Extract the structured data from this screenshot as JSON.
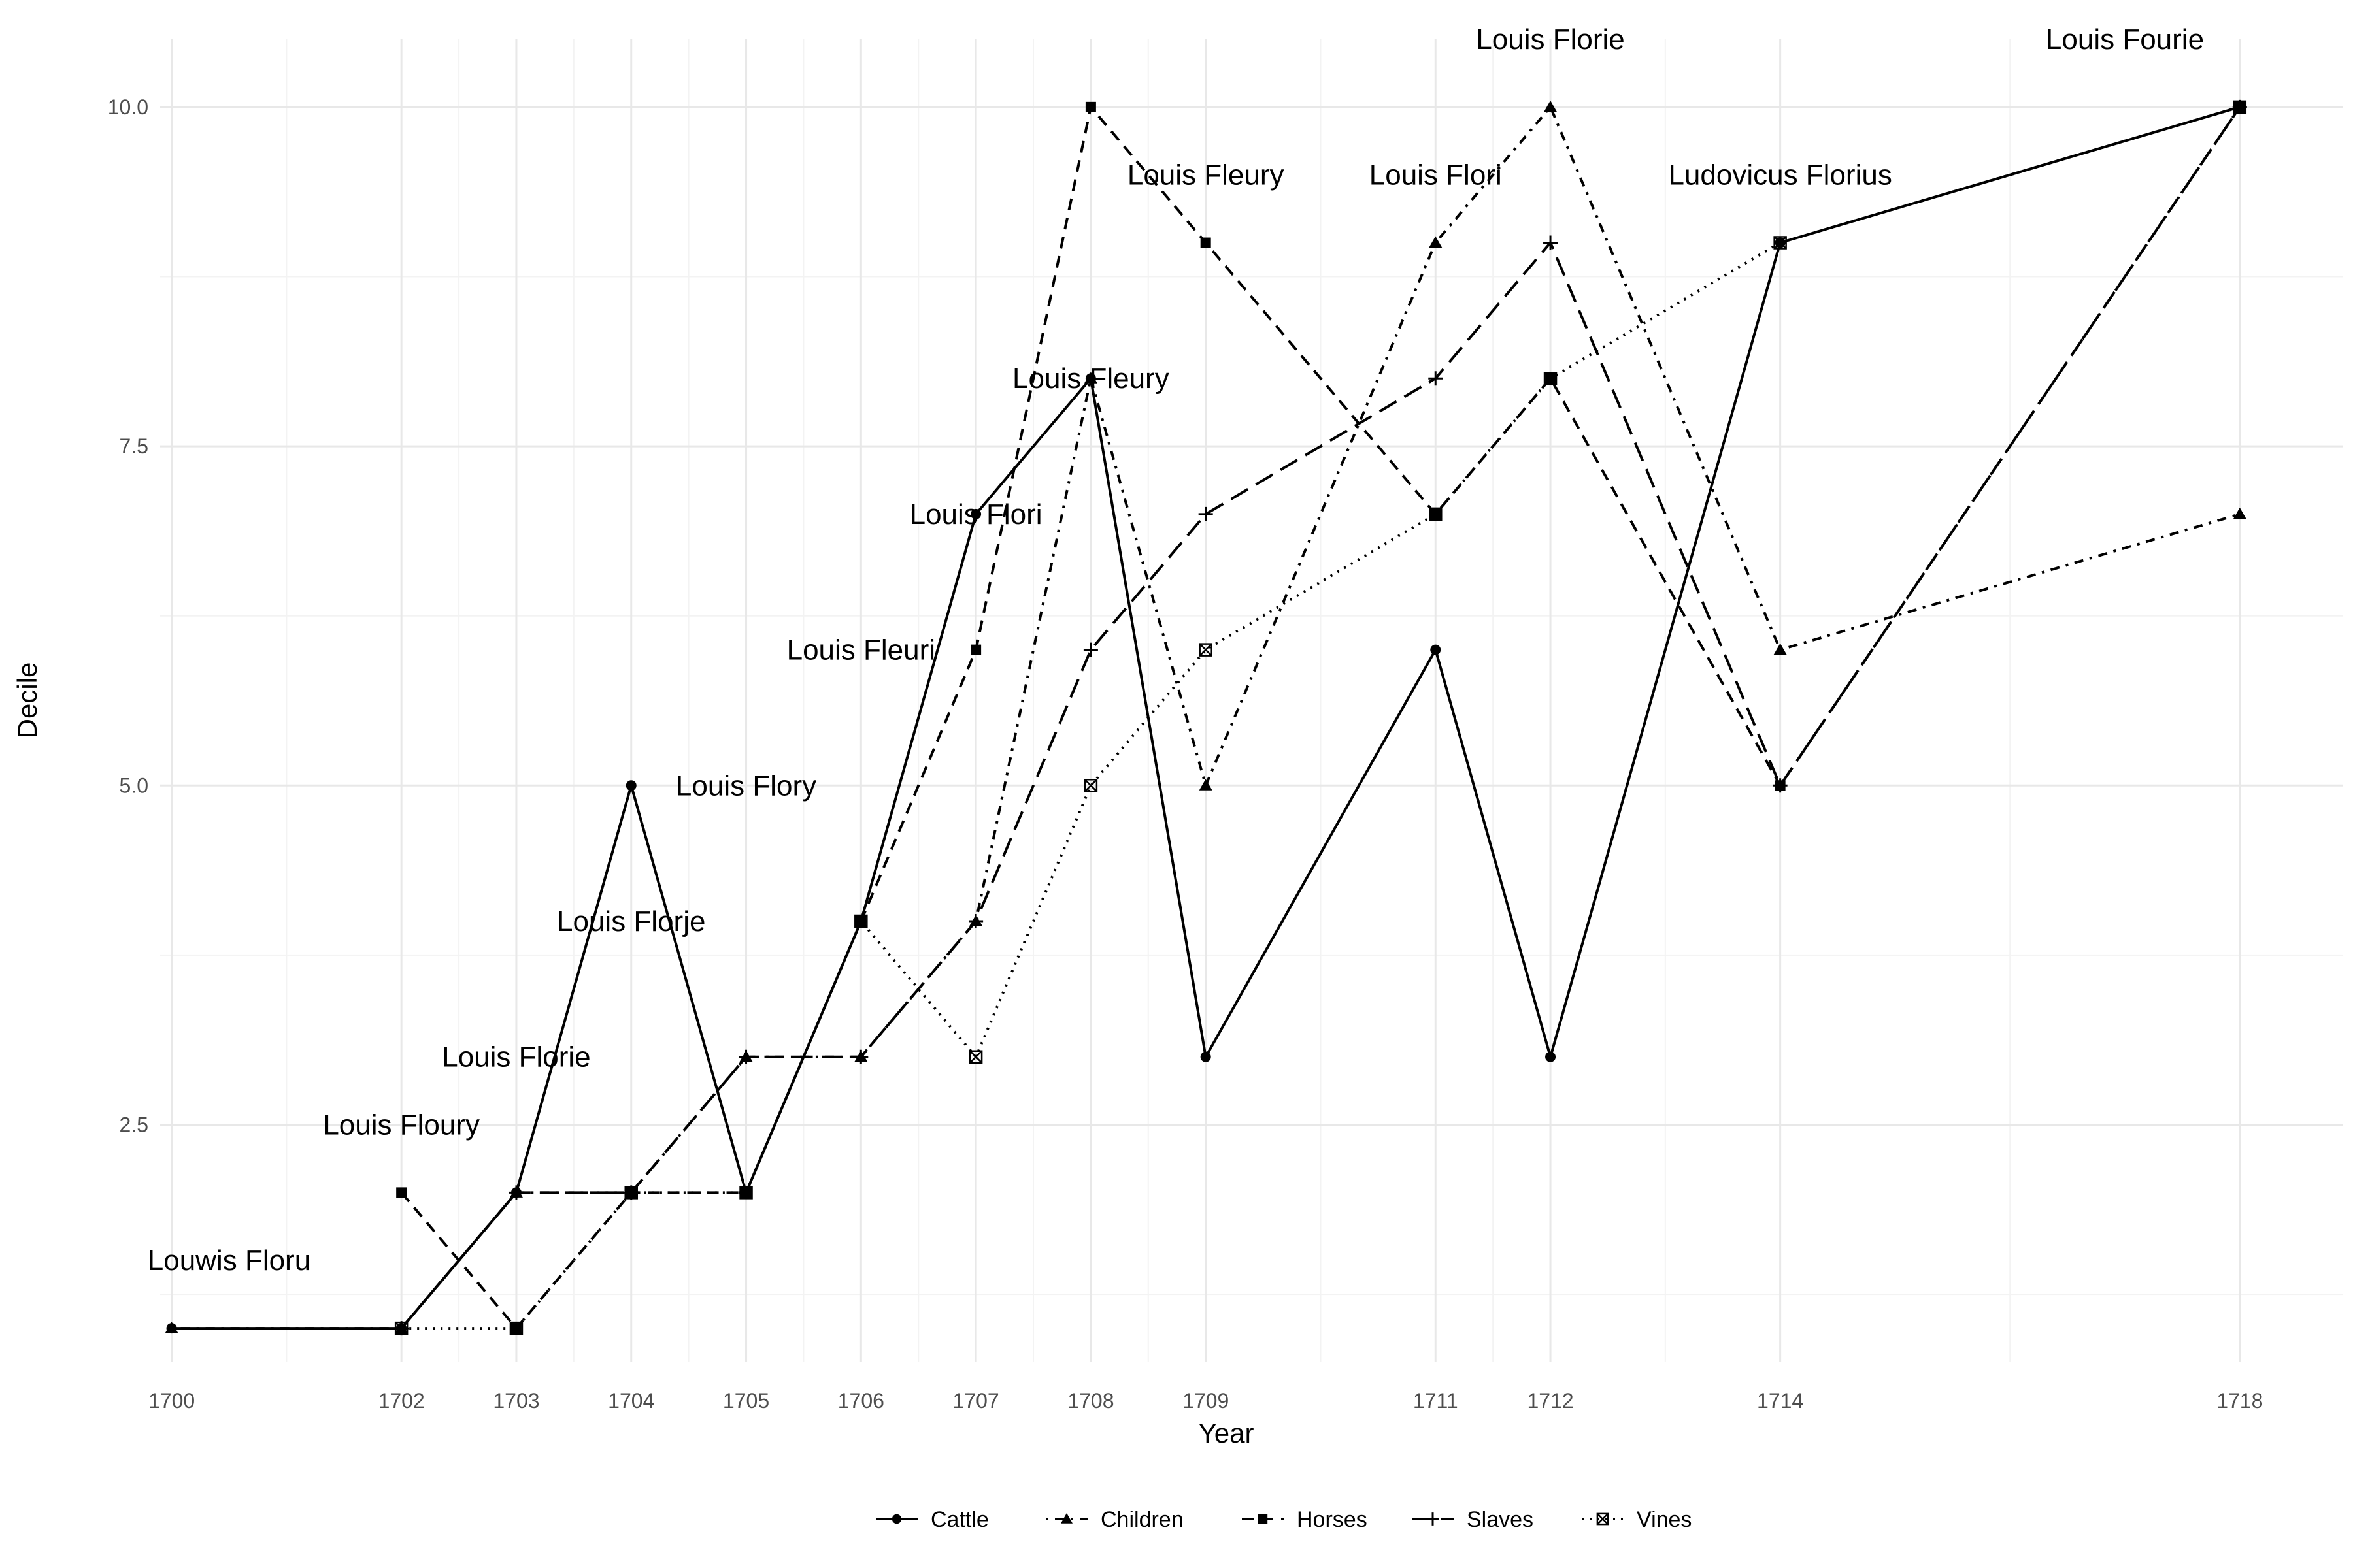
{
  "chart_data": {
    "type": "line",
    "xlabel": "Year",
    "ylabel": "Decile",
    "x_ticks": [
      1700,
      1702,
      1703,
      1704,
      1705,
      1706,
      1707,
      1708,
      1709,
      1711,
      1712,
      1714,
      1718
    ],
    "y_ticks": [
      2.5,
      5.0,
      7.5,
      10.0
    ],
    "y_tick_labels": [
      "2.5",
      "5.0",
      "7.5",
      "10.0"
    ],
    "xlim": [
      1699.9,
      1718.9
    ],
    "ylim": [
      0.75,
      10.5
    ],
    "grid": true,
    "legend_position": "bottom",
    "series": [
      {
        "name": "Cattle",
        "marker": "circle",
        "dash": "solid",
        "points": [
          [
            1700,
            1
          ],
          [
            1702,
            1
          ],
          [
            1703,
            2
          ],
          [
            1704,
            5
          ],
          [
            1705,
            2
          ],
          [
            1706,
            4
          ],
          [
            1707,
            7
          ],
          [
            1708,
            8
          ],
          [
            1709,
            3
          ],
          [
            1711,
            6
          ],
          [
            1712,
            3
          ],
          [
            1714,
            9
          ],
          [
            1718,
            10
          ]
        ]
      },
      {
        "name": "Children",
        "marker": "triangle",
        "dash": "dotdash",
        "points": [
          [
            1700,
            1
          ],
          [
            1702,
            1
          ],
          [
            1703,
            2
          ],
          [
            1704,
            2
          ],
          [
            1705,
            3
          ],
          [
            1706,
            3
          ],
          [
            1707,
            4
          ],
          [
            1708,
            8
          ],
          [
            1709,
            5
          ],
          [
            1711,
            9
          ],
          [
            1712,
            10
          ],
          [
            1714,
            6
          ],
          [
            1718,
            7
          ]
        ]
      },
      {
        "name": "Horses",
        "marker": "square",
        "dash": "dashed",
        "points": [
          [
            1702,
            2
          ],
          [
            1703,
            1
          ],
          [
            1704,
            2
          ],
          [
            1705,
            2
          ],
          [
            1706,
            4
          ],
          [
            1707,
            6
          ],
          [
            1708,
            10
          ],
          [
            1709,
            9
          ],
          [
            1711,
            7
          ],
          [
            1712,
            8
          ],
          [
            1714,
            5
          ],
          [
            1718,
            10
          ]
        ]
      },
      {
        "name": "Slaves",
        "marker": "plus",
        "dash": "longdash",
        "points": [
          [
            1702,
            1
          ],
          [
            1703,
            2
          ],
          [
            1704,
            2
          ],
          [
            1705,
            3
          ],
          [
            1706,
            3
          ],
          [
            1707,
            4
          ],
          [
            1708,
            6
          ],
          [
            1709,
            7
          ],
          [
            1711,
            8
          ],
          [
            1712,
            9
          ],
          [
            1714,
            5
          ],
          [
            1718,
            10
          ]
        ]
      },
      {
        "name": "Vines",
        "marker": "square-cross",
        "dash": "dotted",
        "points": [
          [
            1702,
            1
          ],
          [
            1703,
            1
          ],
          [
            1704,
            2
          ],
          [
            1705,
            2
          ],
          [
            1706,
            4
          ],
          [
            1707,
            3
          ],
          [
            1708,
            5
          ],
          [
            1709,
            6
          ],
          [
            1711,
            7
          ],
          [
            1712,
            8
          ],
          [
            1714,
            9
          ],
          [
            1718,
            10
          ]
        ]
      }
    ],
    "annotations": [
      {
        "text": "Louwis Floru",
        "x": 1700.5,
        "y": 1.5
      },
      {
        "text": "Louis Floury",
        "x": 1702.0,
        "y": 2.5
      },
      {
        "text": "Louis Florie",
        "x": 1703.0,
        "y": 3.0
      },
      {
        "text": "Louis Florje",
        "x": 1704.0,
        "y": 4.0
      },
      {
        "text": "Louis Flory",
        "x": 1705.0,
        "y": 5.0
      },
      {
        "text": "Louis Fleuri",
        "x": 1706.0,
        "y": 6.0
      },
      {
        "text": "Louis Flori",
        "x": 1707.0,
        "y": 7.0
      },
      {
        "text": "Louis Fleury",
        "x": 1708.0,
        "y": 8.0
      },
      {
        "text": "Louis Fleury",
        "x": 1709.0,
        "y": 9.5
      },
      {
        "text": "Louis Flori",
        "x": 1711.0,
        "y": 9.5
      },
      {
        "text": "Louis Florie",
        "x": 1712.0,
        "y": 10.5
      },
      {
        "text": "Ludovicus Florius",
        "x": 1714.0,
        "y": 9.5
      },
      {
        "text": "Louis Fourie",
        "x": 1717.0,
        "y": 10.5
      }
    ]
  }
}
